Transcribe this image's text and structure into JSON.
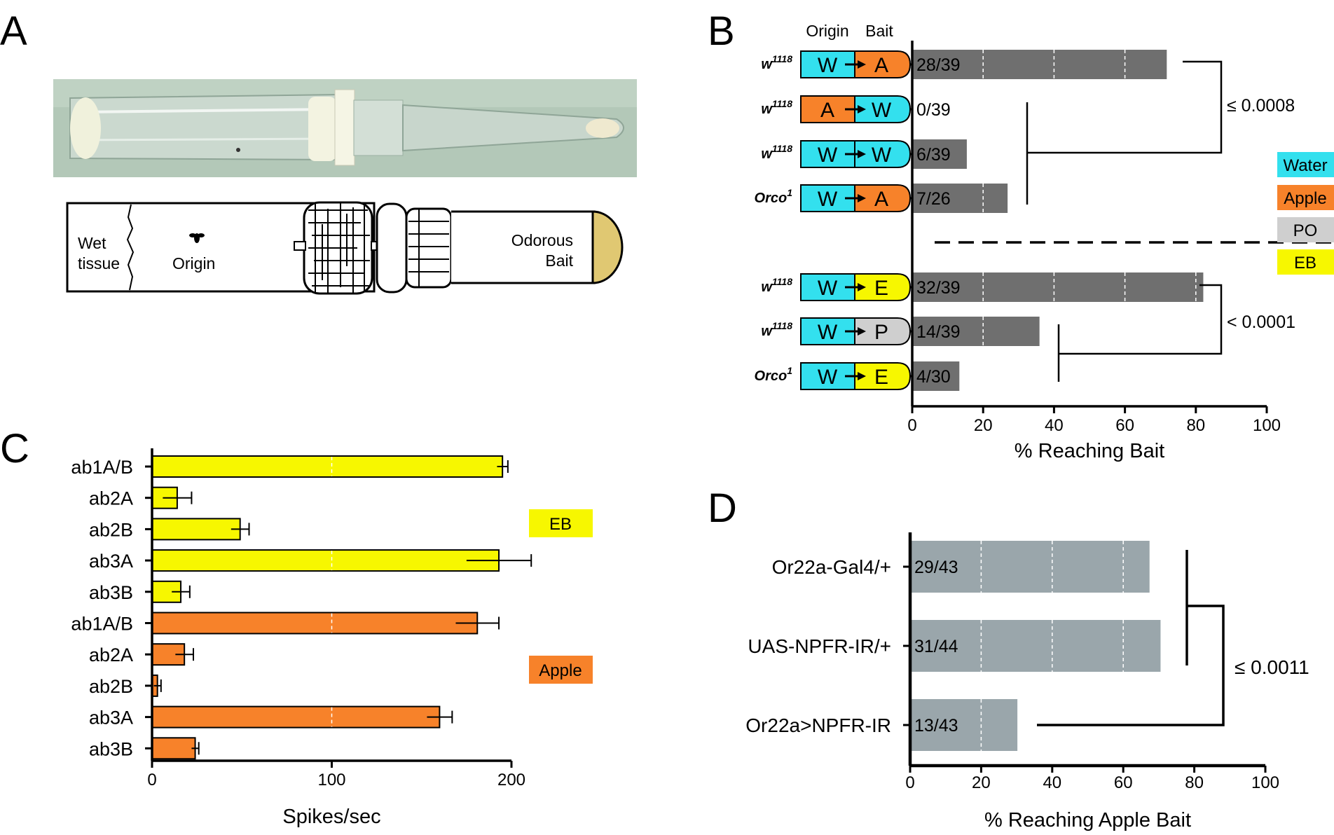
{
  "panel_labels": {
    "a": "A",
    "b": "B",
    "c": "C",
    "d": "D"
  },
  "colors": {
    "water": "#33e0ee",
    "apple": "#f7822a",
    "po": "#cfcfcf",
    "eb": "#f7f700",
    "bar_dark": "#6f6f6f",
    "bar_grey": "#9aa6ab",
    "bait_fill": "#e0c872",
    "photo_bg": "#b3c8b8"
  },
  "panel_a": {
    "diagram": {
      "wet_tissue": [
        "Wet",
        "tissue"
      ],
      "origin": "Origin",
      "bait": [
        "Odorous",
        "Bait"
      ]
    }
  },
  "chart_data": [
    {
      "panel": "B",
      "type": "bar",
      "orientation": "horizontal",
      "column_headers": {
        "origin": "Origin",
        "bait": "Bait"
      },
      "xlabel": "% Reaching Bait",
      "xlim": [
        0,
        100
      ],
      "xticks": [
        0,
        20,
        40,
        60,
        80,
        100
      ],
      "legend": [
        {
          "label": "Water",
          "color": "#33e0ee"
        },
        {
          "label": "Apple",
          "color": "#f7822a"
        },
        {
          "label": "PO",
          "color": "#cfcfcf"
        },
        {
          "label": "EB",
          "color": "#f7f700"
        }
      ],
      "rows": [
        {
          "genotype": "w",
          "sup": "1118",
          "origin": "W",
          "bait": "A",
          "bait_type": "apple",
          "origin_type": "water",
          "label": "28/39",
          "value": 71.8
        },
        {
          "genotype": "w",
          "sup": "1118",
          "origin": "A",
          "bait": "W",
          "bait_type": "water",
          "origin_type": "apple",
          "label": "0/39",
          "value": 0
        },
        {
          "genotype": "w",
          "sup": "1118",
          "origin": "W",
          "bait": "W",
          "bait_type": "water",
          "origin_type": "water",
          "label": "6/39",
          "value": 15.4
        },
        {
          "genotype": "Orco",
          "sup": "1",
          "origin": "W",
          "bait": "A",
          "bait_type": "apple",
          "origin_type": "water",
          "label": "7/26",
          "value": 26.9
        },
        {
          "genotype": "w",
          "sup": "1118",
          "origin": "W",
          "bait": "E",
          "bait_type": "eb",
          "origin_type": "water",
          "label": "32/39",
          "value": 82.1
        },
        {
          "genotype": "w",
          "sup": "1118",
          "origin": "W",
          "bait": "P",
          "bait_type": "po",
          "origin_type": "water",
          "label": "14/39",
          "value": 35.9
        },
        {
          "genotype": "Orco",
          "sup": "1",
          "origin": "W",
          "bait": "E",
          "bait_type": "eb",
          "origin_type": "water",
          "label": "4/30",
          "value": 13.3
        }
      ],
      "annotations": [
        {
          "text": "≤ 0.0008"
        },
        {
          "text": "< 0.0001"
        }
      ]
    },
    {
      "panel": "C",
      "type": "bar",
      "orientation": "horizontal",
      "xlabel": "Spikes/sec",
      "xlim": [
        0,
        200
      ],
      "xticks": [
        0,
        100,
        200
      ],
      "groups": [
        {
          "label": "EB",
          "color": "#f7f700"
        },
        {
          "label": "Apple",
          "color": "#f7822a"
        }
      ],
      "rows": [
        {
          "label": "ab1A/B",
          "value": 195,
          "err": 3,
          "group": 0
        },
        {
          "label": "ab2A",
          "value": 14,
          "err": 8,
          "group": 0
        },
        {
          "label": "ab2B",
          "value": 49,
          "err": 5,
          "group": 0
        },
        {
          "label": "ab3A",
          "value": 193,
          "err": 18,
          "group": 0
        },
        {
          "label": "ab3B",
          "value": 16,
          "err": 5,
          "group": 0
        },
        {
          "label": "ab1A/B",
          "value": 181,
          "err": 12,
          "group": 1
        },
        {
          "label": "ab2A",
          "value": 18,
          "err": 5,
          "group": 1
        },
        {
          "label": "ab2B",
          "value": 3,
          "err": 2,
          "group": 1
        },
        {
          "label": "ab3A",
          "value": 160,
          "err": 7,
          "group": 1
        },
        {
          "label": "ab3B",
          "value": 24,
          "err": 2,
          "group": 1
        }
      ]
    },
    {
      "panel": "D",
      "type": "bar",
      "orientation": "horizontal",
      "xlabel": "% Reaching Apple Bait",
      "xlim": [
        0,
        100
      ],
      "xticks": [
        0,
        20,
        40,
        60,
        80,
        100
      ],
      "rows": [
        {
          "label": "Or22a-Gal4/+",
          "bar_label": "29/43",
          "value": 67.4
        },
        {
          "label": "UAS-NPFR-IR/+",
          "bar_label": "31/44",
          "value": 70.5
        },
        {
          "label": "Or22a>NPFR-IR",
          "bar_label": "13/43",
          "value": 30.2
        }
      ],
      "annotations": [
        {
          "text": "≤ 0.0011"
        }
      ]
    }
  ]
}
